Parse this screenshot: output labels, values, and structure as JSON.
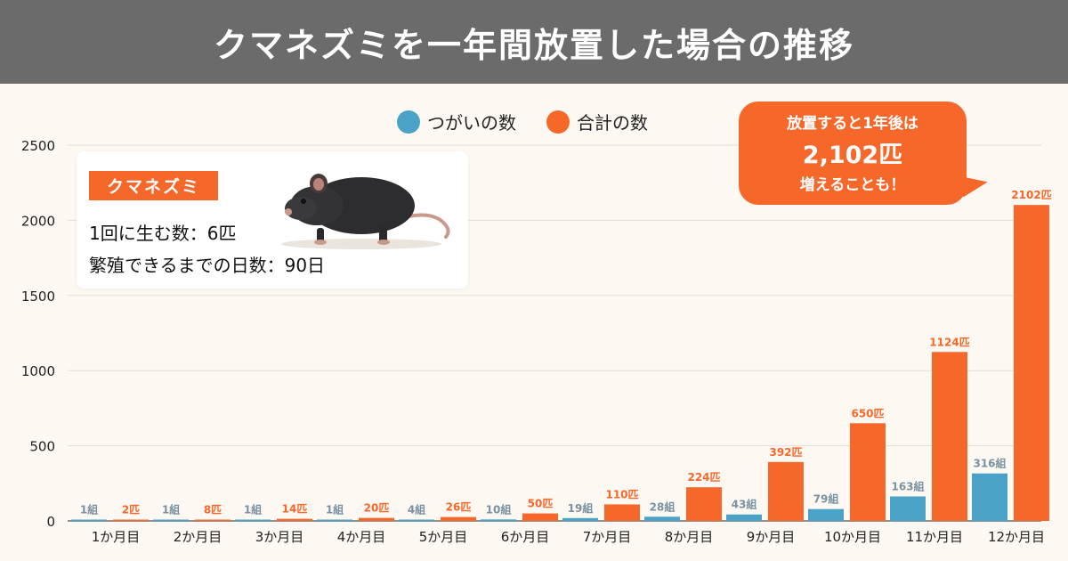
{
  "header": {
    "title": "クマネズミを一年間放置した場合の推移"
  },
  "legend": [
    {
      "label": "つがいの数",
      "color": "#4aa3c6"
    },
    {
      "label": "合計の数",
      "color": "#f5682a"
    }
  ],
  "info": {
    "tag": "クマネズミ",
    "line1": "1回に生む数：6匹",
    "line2": "繁殖できるまでの日数：90日"
  },
  "callout": {
    "line1": "放置すると1年後は",
    "line2": "2,102匹",
    "line3": "増えることも！"
  },
  "chart_data": {
    "type": "bar",
    "categories": [
      "1か月目",
      "2か月目",
      "3か月目",
      "4か月目",
      "5か月目",
      "6か月目",
      "7か月目",
      "8か月目",
      "9か月目",
      "10か月目",
      "11か月目",
      "12か月目"
    ],
    "series": [
      {
        "name": "つがいの数",
        "color": "#4aa3c6",
        "values": [
          1,
          1,
          1,
          1,
          4,
          10,
          19,
          28,
          43,
          79,
          163,
          316
        ],
        "labels": [
          "1組",
          "1組",
          "1組",
          "1組",
          "4組",
          "10組",
          "19組",
          "28組",
          "43組",
          "79組",
          "163組",
          "316組"
        ]
      },
      {
        "name": "合計の数",
        "color": "#f5682a",
        "values": [
          2,
          8,
          14,
          20,
          26,
          50,
          110,
          224,
          392,
          650,
          1124,
          2102
        ],
        "labels": [
          "2匹",
          "8匹",
          "14匹",
          "20匹",
          "26匹",
          "50匹",
          "110匹",
          "224匹",
          "392匹",
          "650匹",
          "1124匹",
          "2102匹"
        ]
      }
    ],
    "yticks": [
      "0",
      "500",
      "1000",
      "1500",
      "2000",
      "2500"
    ],
    "ylim": [
      0,
      2500
    ],
    "grid": true,
    "legend_position": "top"
  }
}
